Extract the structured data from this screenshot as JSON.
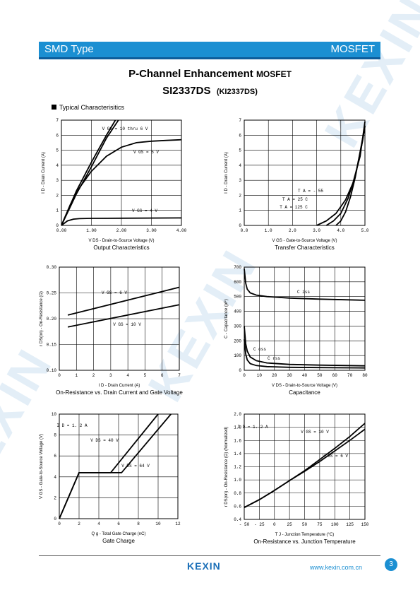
{
  "header": {
    "left": "SMD Type",
    "right": "MOSFET"
  },
  "title": {
    "line1_main": "P-Channel Enhancement ",
    "line1_small": "MOSFET",
    "part": "SI2337DS",
    "alt_part": "(KI2337DS)"
  },
  "section_title": "Typical  Characterisitics",
  "watermark": "KEXIN",
  "footer": {
    "logo": "KEXIN",
    "url": "www.kexin.com.cn",
    "page": "3"
  },
  "charts": [
    {
      "caption": "Output Characteristics",
      "xlabel": "V DS - Drain-to-Source Voltage (V)",
      "ylabel": "I D - Drain Current (A)",
      "xticks": [
        "0.00",
        "1.00",
        "2.00",
        "3.00",
        "4.00"
      ],
      "yticks": [
        "0",
        "1",
        "2",
        "3",
        "4",
        "5",
        "6",
        "7"
      ],
      "annotations": [
        "V GS = 10 thru 6 V",
        "V GS = 5 V",
        "V GS = 4 V"
      ],
      "chart_data": {
        "type": "line",
        "xlim": [
          0,
          4
        ],
        "ylim": [
          0,
          7
        ],
        "grid": true,
        "series": [
          {
            "name": "VGS = 10 thru 6 V",
            "x": [
              0,
              0.5,
              1.0,
              1.5,
              1.8
            ],
            "y": [
              0,
              2.3,
              4.2,
              6.0,
              7.0
            ]
          },
          {
            "name": "VGS = 10 thru 6 V",
            "x": [
              0,
              0.5,
              1.0,
              1.5,
              1.9
            ],
            "y": [
              0,
              2.1,
              3.9,
              5.8,
              7.0
            ]
          },
          {
            "name": "VGS = 5 V",
            "x": [
              0,
              0.3,
              0.6,
              1.0,
              1.5,
              2.0,
              2.5,
              3.0,
              3.5,
              4.0
            ],
            "y": [
              0,
              1.4,
              2.5,
              3.6,
              4.6,
              5.2,
              5.5,
              5.6,
              5.65,
              5.7
            ]
          },
          {
            "name": "VGS = 4 V",
            "x": [
              0,
              0.2,
              0.4,
              0.6,
              1.0,
              2.0,
              4.0
            ],
            "y": [
              0,
              0.3,
              0.42,
              0.45,
              0.47,
              0.48,
              0.5
            ]
          }
        ]
      }
    },
    {
      "caption": "Transfer Characteristics",
      "xlabel": "V GS - Gate-to-Source Voltage (V)",
      "ylabel": "I D - Drain Current (A)",
      "xticks": [
        "0.0",
        "1.0",
        "2.0",
        "3.0",
        "4.0",
        "5.0"
      ],
      "yticks": [
        "0",
        "1",
        "2",
        "3",
        "4",
        "5",
        "6",
        "7"
      ],
      "annotations": [
        "T A = - 55",
        "T A = 25  C",
        "T A = 125  C"
      ],
      "chart_data": {
        "type": "line",
        "xlim": [
          0,
          5
        ],
        "ylim": [
          0,
          7
        ],
        "grid": true,
        "series": [
          {
            "name": "TA = -55",
            "x": [
              3.8,
              4.0,
              4.2,
              4.4,
              4.6,
              4.8,
              5.0
            ],
            "y": [
              0,
              0.3,
              0.9,
              1.9,
              3.2,
              4.9,
              6.6
            ]
          },
          {
            "name": "TA = 25 C",
            "x": [
              3.4,
              3.7,
              4.0,
              4.3,
              4.6,
              4.9,
              5.0
            ],
            "y": [
              0,
              0.3,
              0.8,
              1.8,
              3.3,
              5.6,
              6.6
            ]
          },
          {
            "name": "TA = 125 C",
            "x": [
              3.0,
              3.4,
              3.8,
              4.2,
              4.5,
              4.8,
              5.0
            ],
            "y": [
              0,
              0.3,
              0.8,
              1.7,
              2.8,
              4.6,
              6.9
            ]
          }
        ]
      }
    },
    {
      "caption": "On-Resistance vs. Drain Current and Gate Voltage",
      "xlabel": "I D - Drain Current (A)",
      "ylabel": "r DS(on) - On-Resistance (Ω)",
      "xticks": [
        "0",
        "1",
        "2",
        "3",
        "4",
        "5",
        "6",
        "7"
      ],
      "yticks": [
        "0.10",
        "0.15",
        "0.20",
        "0.25",
        "0.30"
      ],
      "annotations": [
        "V GS = 6 V",
        "V GS = 10 V"
      ],
      "chart_data": {
        "type": "line",
        "xlim": [
          0,
          7
        ],
        "ylim": [
          0.1,
          0.3
        ],
        "grid": true,
        "series": [
          {
            "name": "VGS = 6 V",
            "x": [
              0.5,
              7
            ],
            "y": [
              0.207,
              0.261
            ]
          },
          {
            "name": "VGS = 10 V",
            "x": [
              0.5,
              7
            ],
            "y": [
              0.184,
              0.227
            ]
          }
        ]
      }
    },
    {
      "caption": "Capacitance",
      "xlabel": "V DS - Drain-to-Source Voltage (V)",
      "ylabel": "C - Capacitance (pF)",
      "xticks": [
        "0",
        "10",
        "20",
        "30",
        "40",
        "50",
        "60",
        "70",
        "80"
      ],
      "yticks": [
        "0",
        "100",
        "200",
        "300",
        "400",
        "500",
        "600",
        "700"
      ],
      "annotations": [
        "C iss",
        "C oss",
        "C rss"
      ],
      "chart_data": {
        "type": "line",
        "xlim": [
          0,
          80
        ],
        "ylim": [
          0,
          700
        ],
        "grid": true,
        "series": [
          {
            "name": "Ciss",
            "x": [
              0,
              1,
              2,
              4,
              8,
              15,
              30,
              50,
              80
            ],
            "y": [
              690,
              590,
              550,
              525,
              510,
              500,
              490,
              483,
              475
            ]
          },
          {
            "name": "Coss",
            "x": [
              0,
              1,
              2,
              4,
              8,
              15,
              30,
              50,
              80
            ],
            "y": [
              300,
              180,
              130,
              90,
              65,
              50,
              40,
              35,
              30
            ]
          },
          {
            "name": "Crss",
            "x": [
              0,
              1,
              2,
              4,
              8,
              15,
              30,
              50,
              80
            ],
            "y": [
              210,
              110,
              70,
              45,
              32,
              25,
              20,
              18,
              16
            ]
          }
        ]
      }
    },
    {
      "caption": "Gate Charge",
      "xlabel": "Q g - Total Gate Charge (nC)",
      "ylabel": "V GS - Gate-to-Source Voltage (V)",
      "xticks": [
        "0",
        "2",
        "4",
        "6",
        "8",
        "10",
        "12"
      ],
      "yticks": [
        "0",
        "2",
        "4",
        "6",
        "8",
        "10"
      ],
      "annotations": [
        "I D = 1. 2 A",
        "V DS = 40 V",
        "V DS = 64 V"
      ],
      "chart_data": {
        "type": "line",
        "xlim": [
          0,
          12
        ],
        "ylim": [
          0,
          10
        ],
        "grid": true,
        "series": [
          {
            "name": "VDS = 40 V",
            "x": [
              0,
              2,
              5.2,
              10
            ],
            "y": [
              0,
              4.4,
              4.4,
              10
            ]
          },
          {
            "name": "VDS = 64 V",
            "x": [
              0,
              2,
              6.3,
              11.3
            ],
            "y": [
              0,
              4.4,
              4.4,
              10
            ]
          }
        ]
      }
    },
    {
      "caption": "On-Resistance vs. Junction Temperature",
      "xlabel": "T J - Junction Temperature (°C)",
      "ylabel": "r DS(on) - On-Resistance (Ω) (Normalized)",
      "xticks": [
        "- 50",
        "- 25",
        "0",
        "25",
        "50",
        "75",
        "100",
        "125",
        "150"
      ],
      "yticks": [
        "0.4",
        "0.6",
        "0.8",
        "1.0",
        "1.2",
        "1.4",
        "1.6",
        "1.8",
        "2.0"
      ],
      "annotations": [
        "I D = 1. 2 A",
        "V GS = 10 V",
        "V GS = 6 V"
      ],
      "chart_data": {
        "type": "line",
        "xlim": [
          -50,
          150
        ],
        "ylim": [
          0.4,
          2.0
        ],
        "grid": true,
        "series": [
          {
            "name": "VGS = 10 V",
            "x": [
              -50,
              -25,
              0,
              25,
              50,
              75,
              100,
              125,
              150
            ],
            "y": [
              0.58,
              0.7,
              0.84,
              0.99,
              1.14,
              1.31,
              1.48,
              1.66,
              1.86
            ]
          },
          {
            "name": "VGS = 6 V",
            "x": [
              -50,
              -25,
              0,
              25,
              50,
              75,
              100,
              125,
              150
            ],
            "y": [
              0.58,
              0.7,
              0.84,
              0.99,
              1.13,
              1.28,
              1.44,
              1.6,
              1.77
            ]
          }
        ]
      }
    }
  ]
}
